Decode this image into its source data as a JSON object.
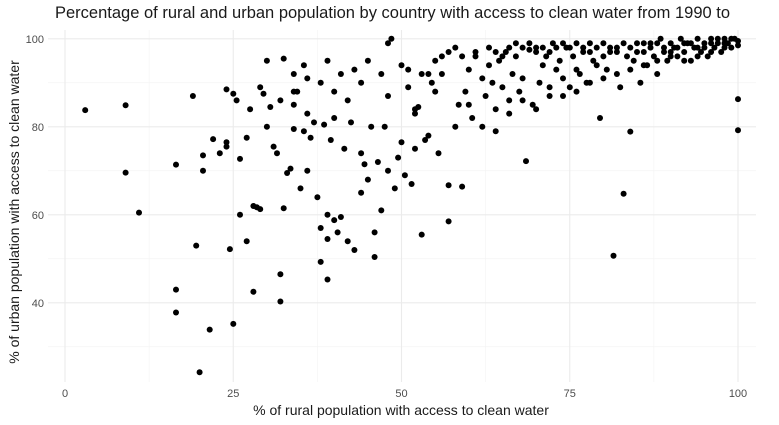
{
  "chart_data": {
    "type": "scatter",
    "title": "Percentage of rural and urban population by country with access to clean water from 1990 to",
    "xlabel": "% of rural population with access to clean water",
    "ylabel": "% of urban population with access to clean water",
    "xlim": [
      0,
      100
    ],
    "ylim": [
      22,
      102
    ],
    "x_ticks": [
      0,
      25,
      50,
      75,
      100
    ],
    "y_ticks": [
      40,
      60,
      80,
      100
    ],
    "grid": true,
    "point_color": "#000000",
    "points": [
      [
        3,
        83.8
      ],
      [
        9,
        84.9
      ],
      [
        9,
        69.6
      ],
      [
        11,
        60.5
      ],
      [
        16.5,
        71.4
      ],
      [
        16.5,
        43
      ],
      [
        16.5,
        37.8
      ],
      [
        19,
        87
      ],
      [
        19.5,
        53
      ],
      [
        20,
        24.2
      ],
      [
        21.5,
        33.9
      ],
      [
        22,
        77.2
      ],
      [
        23,
        74
      ],
      [
        20.5,
        73.5
      ],
      [
        20.5,
        70
      ],
      [
        24,
        88.5
      ],
      [
        24,
        76.5
      ],
      [
        24,
        75.5
      ],
      [
        24.5,
        52.2
      ],
      [
        25,
        35.2
      ],
      [
        25,
        87.5
      ],
      [
        25.5,
        86
      ],
      [
        26,
        72.7
      ],
      [
        27,
        77.5
      ],
      [
        27.5,
        84
      ],
      [
        28,
        42.5
      ],
      [
        28.5,
        61.7
      ],
      [
        29,
        61.3
      ],
      [
        29,
        89
      ],
      [
        29.5,
        87.5
      ],
      [
        30,
        80
      ],
      [
        30.5,
        84.5
      ],
      [
        31,
        75.5
      ],
      [
        31.5,
        74
      ],
      [
        32,
        46.5
      ],
      [
        32,
        40.3
      ],
      [
        32.5,
        61.5
      ],
      [
        32.5,
        95.5
      ],
      [
        33,
        69.5
      ],
      [
        33.5,
        70.5
      ],
      [
        34,
        79.5
      ],
      [
        34,
        85
      ],
      [
        34.5,
        88
      ],
      [
        35,
        66
      ],
      [
        35.5,
        79
      ],
      [
        35.5,
        94
      ],
      [
        36,
        83
      ],
      [
        36.5,
        77.5
      ],
      [
        37,
        81
      ],
      [
        37.5,
        64
      ],
      [
        38,
        49.3
      ],
      [
        38,
        57
      ],
      [
        38.5,
        80.5
      ],
      [
        39,
        45.3
      ],
      [
        39,
        54.5
      ],
      [
        39,
        60
      ],
      [
        39.5,
        77
      ],
      [
        40,
        58.8
      ],
      [
        40.5,
        56
      ],
      [
        41,
        59.5
      ],
      [
        41.5,
        75
      ],
      [
        42,
        54
      ],
      [
        42.5,
        81
      ],
      [
        43,
        52
      ],
      [
        44,
        65
      ],
      [
        44,
        90
      ],
      [
        44.5,
        71.5
      ],
      [
        45,
        68
      ],
      [
        45.5,
        80
      ],
      [
        46,
        50.4
      ],
      [
        46.5,
        72
      ],
      [
        47,
        92
      ],
      [
        47.5,
        80
      ],
      [
        48,
        87
      ],
      [
        48,
        99
      ],
      [
        48.5,
        100
      ],
      [
        49,
        66
      ],
      [
        49.5,
        73
      ],
      [
        50,
        76.5
      ],
      [
        50.5,
        69
      ],
      [
        51,
        89
      ],
      [
        51.5,
        67
      ],
      [
        52,
        84
      ],
      [
        52.5,
        84.5
      ],
      [
        53,
        55.5
      ],
      [
        53.5,
        77
      ],
      [
        54,
        92
      ],
      [
        54.5,
        90
      ],
      [
        55,
        88
      ],
      [
        55.5,
        74
      ],
      [
        56,
        92
      ],
      [
        57,
        66.7
      ],
      [
        57,
        58.5
      ],
      [
        58,
        80
      ],
      [
        58.5,
        85
      ],
      [
        59,
        66.4
      ],
      [
        59.5,
        88
      ],
      [
        60,
        93
      ],
      [
        60.5,
        82
      ],
      [
        61,
        96
      ],
      [
        62,
        91
      ],
      [
        62.5,
        87
      ],
      [
        63,
        94
      ],
      [
        63.5,
        90
      ],
      [
        64,
        84
      ],
      [
        64.5,
        95
      ],
      [
        65,
        89
      ],
      [
        65.5,
        97
      ],
      [
        66,
        86
      ],
      [
        66.5,
        92
      ],
      [
        67,
        96
      ],
      [
        67.5,
        88
      ],
      [
        68,
        91
      ],
      [
        68.5,
        72.2
      ],
      [
        69,
        97.5
      ],
      [
        69.5,
        85
      ],
      [
        70,
        98
      ],
      [
        70.5,
        90
      ],
      [
        71,
        94
      ],
      [
        71.5,
        96
      ],
      [
        72,
        87
      ],
      [
        72.5,
        99
      ],
      [
        73,
        93
      ],
      [
        73.5,
        95
      ],
      [
        74,
        91
      ],
      [
        74.5,
        98
      ],
      [
        75,
        89
      ],
      [
        75.5,
        96
      ],
      [
        76,
        93
      ],
      [
        76.5,
        92
      ],
      [
        77,
        97
      ],
      [
        77.5,
        90
      ],
      [
        78,
        99
      ],
      [
        78.5,
        95
      ],
      [
        79,
        94
      ],
      [
        79.5,
        82
      ],
      [
        80,
        96
      ],
      [
        80.5,
        93
      ],
      [
        81,
        98
      ],
      [
        81.5,
        50.7
      ],
      [
        82,
        97
      ],
      [
        82.5,
        89
      ],
      [
        83,
        64.8
      ],
      [
        83.5,
        96
      ],
      [
        84,
        78.9
      ],
      [
        84.5,
        95
      ],
      [
        85,
        99
      ],
      [
        85.5,
        90
      ],
      [
        86,
        97
      ],
      [
        86.5,
        94
      ],
      [
        87,
        99
      ],
      [
        87.5,
        96
      ],
      [
        88,
        92
      ],
      [
        88.5,
        100
      ],
      [
        89,
        97
      ],
      [
        89.5,
        95
      ],
      [
        90,
        99
      ],
      [
        90.5,
        98
      ],
      [
        91,
        96
      ],
      [
        91.5,
        100
      ],
      [
        92,
        97
      ],
      [
        92.5,
        99
      ],
      [
        93,
        95
      ],
      [
        93.5,
        98
      ],
      [
        94,
        100
      ],
      [
        94.5,
        97
      ],
      [
        95,
        99
      ],
      [
        95.5,
        96
      ],
      [
        96,
        100
      ],
      [
        96.5,
        98
      ],
      [
        97,
        99
      ],
      [
        97.5,
        97
      ],
      [
        98,
        100
      ],
      [
        98.5,
        99
      ],
      [
        99,
        98
      ],
      [
        99.5,
        100
      ],
      [
        100,
        86.3
      ],
      [
        100,
        79.2
      ],
      [
        100,
        99.5
      ],
      [
        100,
        98.5
      ],
      [
        47,
        61
      ],
      [
        46,
        56
      ],
      [
        52,
        83
      ],
      [
        40,
        82
      ],
      [
        36,
        70
      ],
      [
        34,
        92
      ],
      [
        30,
        95
      ],
      [
        28,
        62
      ],
      [
        27,
        54
      ],
      [
        26,
        60
      ],
      [
        50,
        94
      ],
      [
        51,
        93
      ],
      [
        53,
        92
      ],
      [
        55,
        95
      ],
      [
        56,
        96
      ],
      [
        57,
        97
      ],
      [
        58,
        98
      ],
      [
        59,
        96
      ],
      [
        61,
        97
      ],
      [
        63,
        98
      ],
      [
        64,
        97
      ],
      [
        65,
        96
      ],
      [
        66,
        98
      ],
      [
        67,
        99
      ],
      [
        68,
        98
      ],
      [
        69,
        99
      ],
      [
        70,
        97
      ],
      [
        71,
        98
      ],
      [
        72,
        97
      ],
      [
        73,
        98
      ],
      [
        74,
        99
      ],
      [
        75,
        98
      ],
      [
        76,
        99
      ],
      [
        77,
        98
      ],
      [
        78,
        97
      ],
      [
        79,
        98
      ],
      [
        80,
        99
      ],
      [
        81,
        97
      ],
      [
        82,
        98
      ],
      [
        83,
        99
      ],
      [
        84,
        98
      ],
      [
        85,
        97
      ],
      [
        86,
        99
      ],
      [
        87,
        98
      ],
      [
        88,
        99
      ],
      [
        89,
        98
      ],
      [
        90,
        97
      ],
      [
        91,
        98
      ],
      [
        92,
        99
      ],
      [
        93,
        99
      ],
      [
        94,
        98
      ],
      [
        95,
        98
      ],
      [
        96,
        99
      ],
      [
        97,
        100
      ],
      [
        98,
        99
      ],
      [
        99,
        100
      ],
      [
        60,
        85
      ],
      [
        62,
        80
      ],
      [
        64,
        79
      ],
      [
        66,
        83
      ],
      [
        68,
        86
      ],
      [
        70,
        84
      ],
      [
        72,
        89
      ],
      [
        74,
        87
      ],
      [
        76,
        88
      ],
      [
        78,
        90
      ],
      [
        80,
        91
      ],
      [
        82,
        92
      ],
      [
        84,
        93
      ],
      [
        86,
        94
      ],
      [
        88,
        95
      ],
      [
        90,
        96
      ],
      [
        92,
        95
      ],
      [
        94,
        96
      ],
      [
        96,
        97
      ],
      [
        98,
        98
      ],
      [
        52,
        75
      ],
      [
        54,
        78
      ],
      [
        48,
        70
      ],
      [
        44,
        74
      ],
      [
        42,
        86
      ],
      [
        40,
        88
      ],
      [
        38,
        90
      ],
      [
        36,
        91
      ],
      [
        34,
        88
      ],
      [
        32,
        86
      ],
      [
        45,
        95
      ],
      [
        43,
        93
      ],
      [
        41,
        92
      ],
      [
        39,
        95
      ]
    ]
  }
}
